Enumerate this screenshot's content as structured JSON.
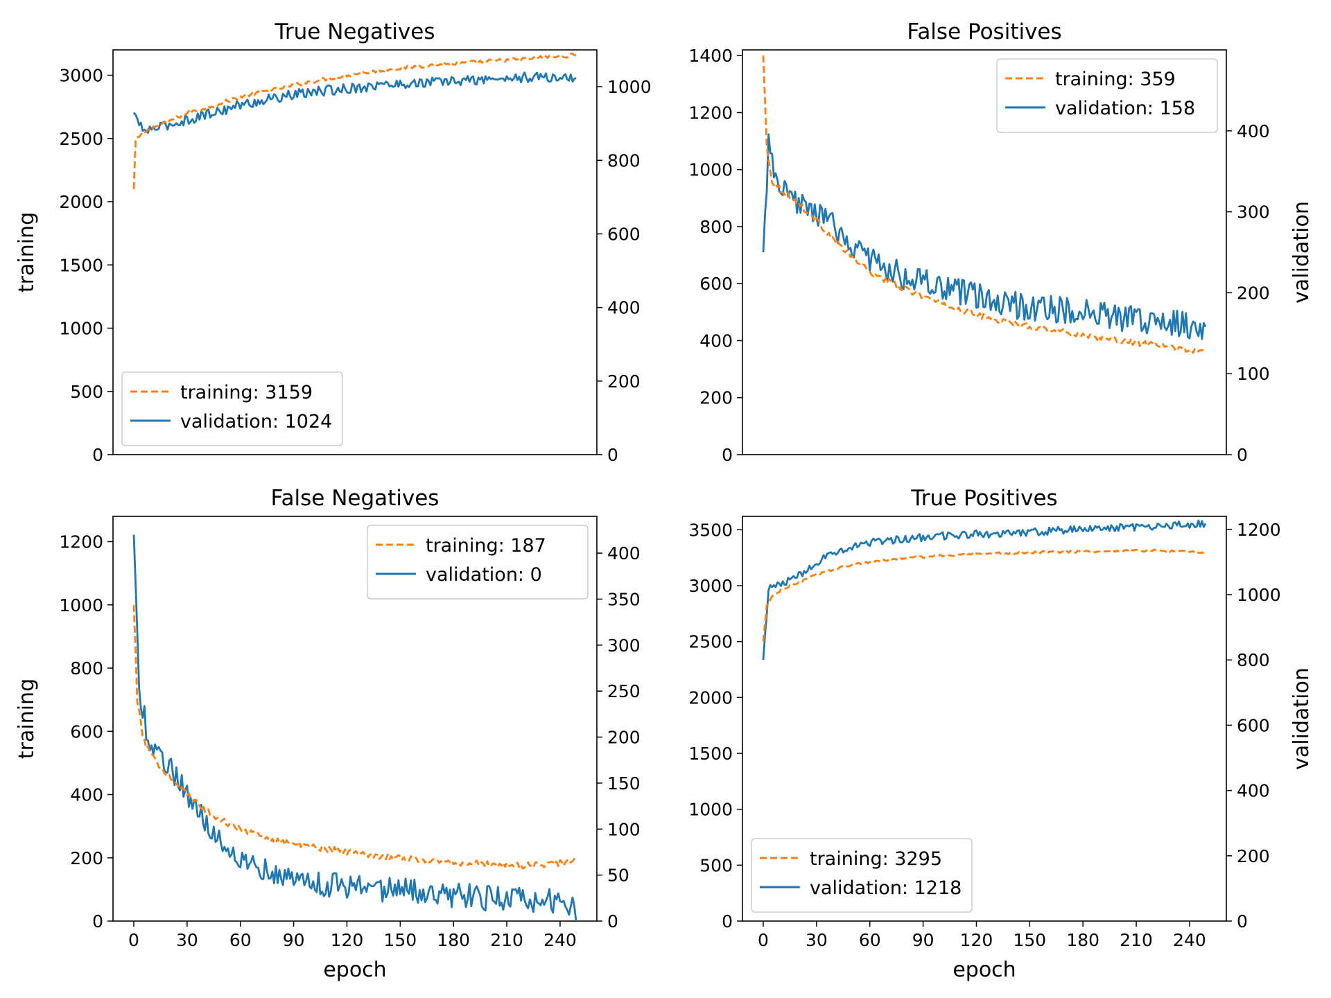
{
  "colors": {
    "training": "#ff7f0e",
    "validation": "#1f77b4"
  },
  "chart_data": [
    {
      "type": "line",
      "title": "True Negatives",
      "xlabel": "",
      "ylabel": "training",
      "y2label": "",
      "xlim": [
        0,
        249
      ],
      "ylim": [
        0,
        3200
      ],
      "y2lim": [
        0,
        1100
      ],
      "xticks": [
        0,
        30,
        60,
        90,
        120,
        150,
        180,
        210,
        240
      ],
      "show_xticklabels": false,
      "yticks": [
        0,
        500,
        1000,
        1500,
        2000,
        2500,
        3000
      ],
      "y2ticks": [
        0,
        200,
        400,
        600,
        800,
        1000
      ],
      "legend_position": "lower-left",
      "series": [
        {
          "name": "training: 3159",
          "axis": "left",
          "style": "dashed",
          "color": "#ff7f0e",
          "trend": [
            [
              0,
              2100
            ],
            [
              1,
              2480
            ],
            [
              5,
              2540
            ],
            [
              10,
              2580
            ],
            [
              20,
              2640
            ],
            [
              30,
              2700
            ],
            [
              45,
              2760
            ],
            [
              60,
              2830
            ],
            [
              80,
              2890
            ],
            [
              100,
              2950
            ],
            [
              120,
              3000
            ],
            [
              140,
              3040
            ],
            [
              160,
              3070
            ],
            [
              180,
              3090
            ],
            [
              200,
              3110
            ],
            [
              220,
              3130
            ],
            [
              249,
              3159
            ]
          ],
          "noise": 15
        },
        {
          "name": "validation: 1024",
          "axis": "right",
          "style": "solid",
          "color": "#1f77b4",
          "trend": [
            [
              0,
              930
            ],
            [
              5,
              880
            ],
            [
              15,
              890
            ],
            [
              30,
              910
            ],
            [
              45,
              930
            ],
            [
              60,
              950
            ],
            [
              80,
              970
            ],
            [
              100,
              985
            ],
            [
              120,
              995
            ],
            [
              140,
              1005
            ],
            [
              160,
              1010
            ],
            [
              180,
              1015
            ],
            [
              200,
              1020
            ],
            [
              220,
              1025
            ],
            [
              249,
              1024
            ]
          ],
          "noise": 14
        }
      ]
    },
    {
      "type": "line",
      "title": "False Positives",
      "xlabel": "",
      "ylabel": "",
      "y2label": "validation",
      "xlim": [
        0,
        249
      ],
      "ylim": [
        0,
        1420
      ],
      "y2lim": [
        0,
        500
      ],
      "xticks": [
        0,
        30,
        60,
        90,
        120,
        150,
        180,
        210,
        240
      ],
      "show_xticklabels": false,
      "yticks": [
        0,
        200,
        400,
        600,
        800,
        1000,
        1200,
        1400
      ],
      "y2ticks": [
        0,
        100,
        200,
        300,
        400
      ],
      "legend_position": "upper-right",
      "series": [
        {
          "name": "training: 359",
          "axis": "left",
          "style": "dashed",
          "color": "#ff7f0e",
          "trend": [
            [
              0,
              1400
            ],
            [
              2,
              1080
            ],
            [
              5,
              960
            ],
            [
              10,
              930
            ],
            [
              20,
              880
            ],
            [
              30,
              820
            ],
            [
              45,
              720
            ],
            [
              60,
              640
            ],
            [
              80,
              580
            ],
            [
              100,
              530
            ],
            [
              120,
              490
            ],
            [
              140,
              460
            ],
            [
              160,
              440
            ],
            [
              180,
              420
            ],
            [
              200,
              400
            ],
            [
              220,
              385
            ],
            [
              249,
              359
            ]
          ],
          "noise": 10
        },
        {
          "name": "validation: 158",
          "axis": "right",
          "style": "solid",
          "color": "#1f77b4",
          "trend": [
            [
              0,
              250
            ],
            [
              3,
              380
            ],
            [
              8,
              330
            ],
            [
              15,
              315
            ],
            [
              30,
              300
            ],
            [
              45,
              270
            ],
            [
              60,
              240
            ],
            [
              80,
              220
            ],
            [
              100,
              205
            ],
            [
              120,
              195
            ],
            [
              140,
              185
            ],
            [
              160,
              180
            ],
            [
              180,
              175
            ],
            [
              200,
              170
            ],
            [
              220,
              165
            ],
            [
              249,
              158
            ]
          ],
          "noise": 17
        }
      ]
    },
    {
      "type": "line",
      "title": "False Negatives",
      "xlabel": "epoch",
      "ylabel": "training",
      "y2label": "",
      "xlim": [
        0,
        249
      ],
      "ylim": [
        0,
        1280
      ],
      "y2lim": [
        0,
        440
      ],
      "xticks": [
        0,
        30,
        60,
        90,
        120,
        150,
        180,
        210,
        240
      ],
      "show_xticklabels": true,
      "yticks": [
        0,
        200,
        400,
        600,
        800,
        1000,
        1200
      ],
      "y2ticks": [
        0,
        50,
        100,
        150,
        200,
        250,
        300,
        350,
        400
      ],
      "legend_position": "upper-right",
      "series": [
        {
          "name": "training: 187",
          "axis": "left",
          "style": "dashed",
          "color": "#ff7f0e",
          "trend": [
            [
              0,
              1000
            ],
            [
              2,
              700
            ],
            [
              5,
              580
            ],
            [
              10,
              520
            ],
            [
              20,
              460
            ],
            [
              30,
              400
            ],
            [
              45,
              330
            ],
            [
              60,
              290
            ],
            [
              80,
              255
            ],
            [
              100,
              235
            ],
            [
              120,
              220
            ],
            [
              140,
              205
            ],
            [
              160,
              195
            ],
            [
              180,
              185
            ],
            [
              200,
              180
            ],
            [
              220,
              175
            ],
            [
              249,
              187
            ]
          ],
          "noise": 10
        },
        {
          "name": "validation: 0",
          "axis": "right",
          "style": "solid",
          "color": "#1f77b4",
          "trend": [
            [
              0,
              420
            ],
            [
              3,
              250
            ],
            [
              8,
              200
            ],
            [
              15,
              180
            ],
            [
              30,
              140
            ],
            [
              45,
              95
            ],
            [
              60,
              70
            ],
            [
              80,
              50
            ],
            [
              100,
              42
            ],
            [
              120,
              38
            ],
            [
              140,
              35
            ],
            [
              160,
              32
            ],
            [
              180,
              28
            ],
            [
              200,
              25
            ],
            [
              220,
              22
            ],
            [
              246,
              20
            ],
            [
              249,
              0
            ]
          ],
          "noise": 14
        }
      ]
    },
    {
      "type": "line",
      "title": "True Positives",
      "xlabel": "epoch",
      "ylabel": "",
      "y2label": "validation",
      "xlim": [
        0,
        249
      ],
      "ylim": [
        0,
        3620
      ],
      "y2lim": [
        0,
        1240
      ],
      "xticks": [
        0,
        30,
        60,
        90,
        120,
        150,
        180,
        210,
        240
      ],
      "show_xticklabels": true,
      "yticks": [
        0,
        500,
        1000,
        1500,
        2000,
        2500,
        3000,
        3500
      ],
      "y2ticks": [
        0,
        200,
        400,
        600,
        800,
        1000,
        1200
      ],
      "legend_position": "lower-left",
      "series": [
        {
          "name": "training: 3295",
          "axis": "left",
          "style": "dashed",
          "color": "#ff7f0e",
          "trend": [
            [
              0,
              2500
            ],
            [
              2,
              2820
            ],
            [
              5,
              2900
            ],
            [
              10,
              2960
            ],
            [
              20,
              3030
            ],
            [
              30,
              3100
            ],
            [
              45,
              3170
            ],
            [
              60,
              3210
            ],
            [
              80,
              3250
            ],
            [
              100,
              3265
            ],
            [
              120,
              3280
            ],
            [
              140,
              3290
            ],
            [
              160,
              3300
            ],
            [
              180,
              3305
            ],
            [
              200,
              3310
            ],
            [
              220,
              3315
            ],
            [
              249,
              3295
            ]
          ],
          "noise": 10
        },
        {
          "name": "validation: 1218",
          "axis": "right",
          "style": "solid",
          "color": "#1f77b4",
          "trend": [
            [
              0,
              800
            ],
            [
              3,
              1020
            ],
            [
              10,
              1030
            ],
            [
              20,
              1060
            ],
            [
              30,
              1100
            ],
            [
              45,
              1140
            ],
            [
              60,
              1160
            ],
            [
              80,
              1170
            ],
            [
              100,
              1180
            ],
            [
              120,
              1185
            ],
            [
              140,
              1190
            ],
            [
              160,
              1195
            ],
            [
              180,
              1200
            ],
            [
              200,
              1205
            ],
            [
              220,
              1210
            ],
            [
              249,
              1218
            ]
          ],
          "noise": 12
        }
      ]
    }
  ]
}
